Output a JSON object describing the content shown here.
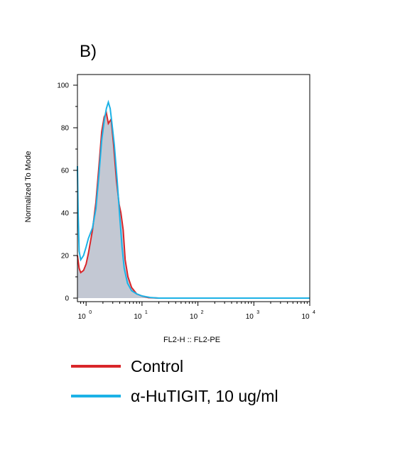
{
  "chart_data": {
    "type": "area",
    "panel_label": "B)",
    "xlabel": "FL2-H :: FL2-PE",
    "ylabel": "Normalized To Mode",
    "x_scale": "log",
    "xlim": [
      0.7,
      10000
    ],
    "ylim": [
      0,
      100
    ],
    "x_ticks": [
      {
        "base": "10",
        "exp": "0",
        "value": 1
      },
      {
        "base": "10",
        "exp": "1",
        "value": 10
      },
      {
        "base": "10",
        "exp": "2",
        "value": 100
      },
      {
        "base": "10",
        "exp": "3",
        "value": 1000
      },
      {
        "base": "10",
        "exp": "4",
        "value": 10000
      }
    ],
    "y_ticks": [
      "0",
      "20",
      "40",
      "60",
      "80",
      "100"
    ],
    "grid": false,
    "legend_position": "bottom",
    "series": [
      {
        "name": "Control",
        "color": "#d9262a",
        "fill": "#c3c8d3",
        "style": "filled",
        "points": [
          [
            0.7,
            20
          ],
          [
            0.75,
            14
          ],
          [
            0.8,
            12
          ],
          [
            0.9,
            13
          ],
          [
            1.0,
            16
          ],
          [
            1.1,
            21
          ],
          [
            1.3,
            32
          ],
          [
            1.5,
            45
          ],
          [
            1.7,
            62
          ],
          [
            1.9,
            78
          ],
          [
            2.1,
            85
          ],
          [
            2.3,
            87
          ],
          [
            2.5,
            82
          ],
          [
            2.8,
            84
          ],
          [
            3.1,
            72
          ],
          [
            3.5,
            55
          ],
          [
            3.9,
            44
          ],
          [
            4.2,
            40
          ],
          [
            4.6,
            32
          ],
          [
            5.0,
            18
          ],
          [
            5.6,
            10
          ],
          [
            6.5,
            5
          ],
          [
            8.0,
            2
          ],
          [
            10,
            1
          ],
          [
            13,
            0.2
          ],
          [
            20,
            0
          ],
          [
            10000,
            0
          ]
        ]
      },
      {
        "name": "α-HuTIGIT, 10 ug/ml",
        "color": "#1cb2e6",
        "style": "line",
        "points": [
          [
            0.7,
            62
          ],
          [
            0.72,
            40
          ],
          [
            0.75,
            22
          ],
          [
            0.8,
            18
          ],
          [
            0.9,
            20
          ],
          [
            1.0,
            24
          ],
          [
            1.1,
            28
          ],
          [
            1.3,
            33
          ],
          [
            1.5,
            42
          ],
          [
            1.7,
            58
          ],
          [
            1.9,
            74
          ],
          [
            2.1,
            83
          ],
          [
            2.3,
            89
          ],
          [
            2.5,
            92
          ],
          [
            2.7,
            89
          ],
          [
            2.9,
            82
          ],
          [
            3.2,
            72
          ],
          [
            3.6,
            55
          ],
          [
            4.0,
            38
          ],
          [
            4.4,
            24
          ],
          [
            4.8,
            14
          ],
          [
            5.5,
            7
          ],
          [
            6.5,
            3.5
          ],
          [
            8.0,
            2
          ],
          [
            10,
            1
          ],
          [
            14,
            0.3
          ],
          [
            20,
            0
          ],
          [
            10000,
            0
          ]
        ]
      }
    ]
  }
}
